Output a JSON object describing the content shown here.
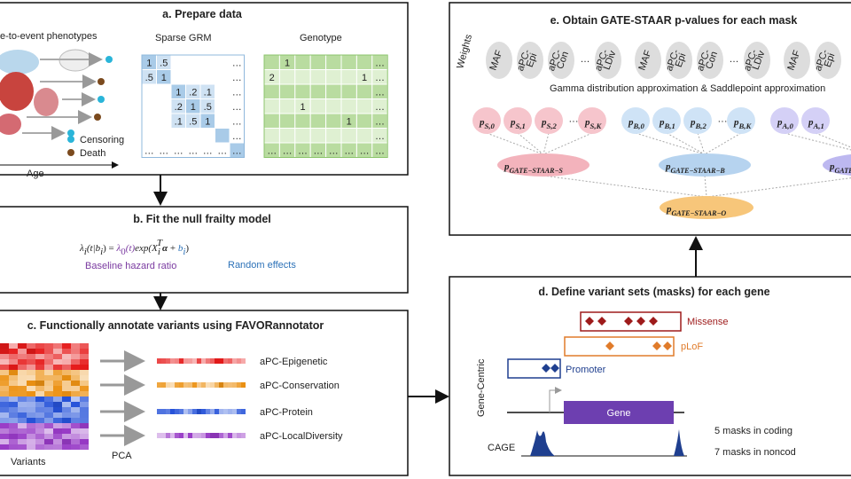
{
  "panel_a": {
    "title": "a. Prepare data",
    "phenotypes_label": "e-to-event phenotypes",
    "grm_label": "Sparse GRM",
    "genotype_label": "Genotype",
    "grm_rows": [
      [
        "1",
        ".5",
        null,
        null,
        null,
        null,
        "…"
      ],
      [
        ".5",
        "1",
        null,
        null,
        null,
        null,
        "…"
      ],
      [
        null,
        null,
        "1",
        ".2",
        ".1",
        null,
        "…"
      ],
      [
        null,
        null,
        ".2",
        "1",
        ".5",
        null,
        "…"
      ],
      [
        null,
        null,
        ".1",
        ".5",
        "1",
        null,
        "…"
      ],
      [
        null,
        null,
        null,
        null,
        null,
        null,
        "…"
      ],
      [
        "…",
        "…",
        "…",
        "…",
        "…",
        "…",
        "…"
      ]
    ],
    "genotype_rows": [
      [
        null,
        "1",
        null,
        null,
        null,
        null,
        null,
        "…"
      ],
      [
        "2",
        null,
        null,
        null,
        null,
        null,
        "1",
        "…"
      ],
      [
        null,
        null,
        null,
        null,
        null,
        null,
        null,
        "…"
      ],
      [
        null,
        null,
        "1",
        null,
        null,
        null,
        null,
        "…"
      ],
      [
        null,
        null,
        null,
        null,
        null,
        "1",
        null,
        "…"
      ],
      [
        null,
        null,
        null,
        null,
        null,
        null,
        null,
        "…"
      ],
      [
        "…",
        "…",
        "…",
        "…",
        "…",
        "…",
        "…",
        "…"
      ]
    ],
    "censoring": "Censoring",
    "death": "Death",
    "age": "Age"
  },
  "panel_b": {
    "title": "b. Fit the null frailty model",
    "formula": {
      "lhs": "λ",
      "lhs_sub": "i",
      "lhs_rest": "(t|b",
      "lhs_sub2": "i",
      "eq": ") = ",
      "base": "λ",
      "base_sub": "0",
      "base_rest": "(t)",
      "exp": "exp(X",
      "x_sub": "i",
      "x_sup": "T",
      "alpha": "α",
      "plus": " + ",
      "re": "b",
      "re_sub": "i",
      "close": ")"
    },
    "baseline_label": "Baseline hazard ratio",
    "random_label": "Random effects"
  },
  "panel_c": {
    "title": "c. Functionally annotate variants using FAVORannotator",
    "annotations": [
      "aPC-Epigenetic",
      "aPC-Conservation",
      "aPC-Protein",
      "aPC-LocalDiversity"
    ],
    "variants_label": "Variants",
    "pca_label": "PCA"
  },
  "panel_d": {
    "title": "d. Define variant sets (masks) for each gene",
    "missense": "Missense",
    "plof": "pLoF",
    "promoter": "Promoter",
    "gene": "Gene",
    "cage": "CAGE",
    "side_label": "Gene-Centric",
    "coding_note": "5 masks in coding",
    "noncoding_note": "7 masks in noncod"
  },
  "panel_e": {
    "title": "e. Obtain GATE-STAAR p-values for each mask",
    "weights_label": "Weights",
    "weight_groups": [
      {
        "before": [
          [
            "MAF"
          ],
          [
            "aPC-",
            "Epi"
          ],
          [
            "aPC-",
            "Con"
          ]
        ],
        "ellipsis": "…",
        "after": [
          [
            "aPC-",
            "LDiv"
          ]
        ]
      },
      {
        "before": [
          [
            "MAF"
          ],
          [
            "aPC-",
            "Epi"
          ],
          [
            "aPC-",
            "Con"
          ]
        ],
        "ellipsis": "…",
        "after": [
          [
            "aPC-",
            "LDiv"
          ]
        ]
      },
      {
        "before": [
          [
            "MAF"
          ],
          [
            "aPC-",
            "Epi"
          ]
        ]
      }
    ],
    "approx_text": "Gamma distribution approximation & Saddlepoint approximation",
    "p_symbol": "p",
    "p_rows": [
      {
        "before": [
          "S,0",
          "S,1",
          "S,2"
        ],
        "ellipsis": "···",
        "after": [
          "S,K"
        ]
      },
      {
        "before": [
          "B,0",
          "B,1",
          "B,2"
        ],
        "ellipsis": "···",
        "after": [
          "B,K"
        ]
      },
      {
        "before": [
          "A,0",
          "A,1"
        ]
      }
    ],
    "combined": [
      "GATE−STAAR−S",
      "GATE−STAAR−B",
      "GATE−S"
    ],
    "omnibus": "GATE−STAAR−O"
  }
}
